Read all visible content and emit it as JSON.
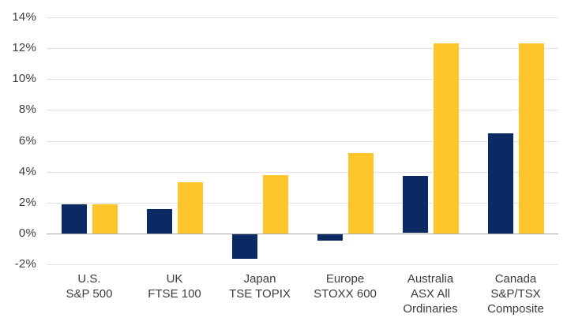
{
  "figure": {
    "background": "#ffffff",
    "title": ""
  },
  "chart_data": {
    "type": "bar",
    "title": "",
    "xlabel": "",
    "ylabel": "",
    "legend": "none",
    "grid": true,
    "categories": [
      {
        "lines": [
          "U.S.",
          "S&P 500"
        ]
      },
      {
        "lines": [
          "UK",
          "FTSE 100"
        ]
      },
      {
        "lines": [
          "Japan",
          "TSE TOPIX"
        ]
      },
      {
        "lines": [
          "Europe",
          "STOXX 600"
        ]
      },
      {
        "lines": [
          "Australia",
          "ASX All",
          "Ordinaries"
        ]
      },
      {
        "lines": [
          "Canada",
          "S&P/TSX",
          "Composite"
        ]
      }
    ],
    "series": [
      {
        "name": "series-navy",
        "color": "#0B2A63",
        "values": [
          1.9,
          1.6,
          -1.6,
          -0.4,
          3.7,
          6.5
        ]
      },
      {
        "name": "series-yellow",
        "color": "#FFC62B",
        "values": [
          1.9,
          3.3,
          3.8,
          5.2,
          12.3,
          12.3
        ]
      }
    ],
    "y_axis": {
      "min": -2,
      "max": 14,
      "step": 2,
      "tick_labels": [
        "14%",
        "12%",
        "10%",
        "8%",
        "6%",
        "4%",
        "2%",
        "0%",
        "-2%"
      ],
      "zero_line_color": "#a6a6a6",
      "grid_color": "#e2e2e2"
    }
  }
}
